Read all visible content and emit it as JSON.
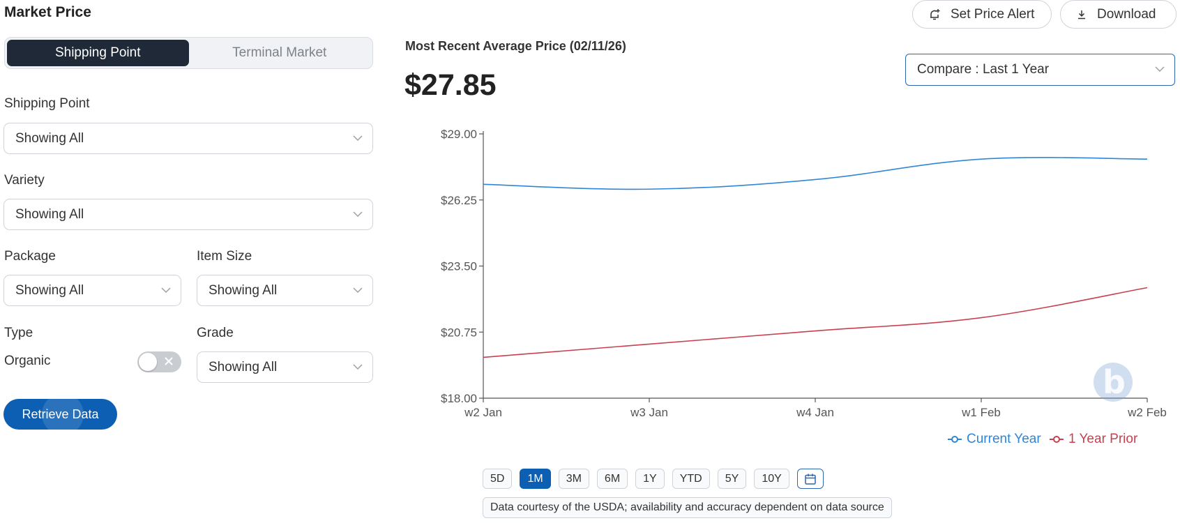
{
  "page": {
    "title": "Market Price"
  },
  "segments": [
    {
      "label": "Shipping Point",
      "active": true
    },
    {
      "label": "Terminal Market",
      "active": false
    }
  ],
  "filters": {
    "shipping_point": {
      "label": "Shipping Point",
      "value": "Showing All"
    },
    "variety": {
      "label": "Variety",
      "value": "Showing All"
    },
    "package": {
      "label": "Package",
      "value": "Showing All"
    },
    "item_size": {
      "label": "Item Size",
      "value": "Showing All"
    },
    "type": {
      "label": "Type",
      "option_label": "Organic",
      "toggle_on": false
    },
    "grade": {
      "label": "Grade",
      "value": "Showing All"
    }
  },
  "retrieve_button": "Retrieve Data",
  "header_buttons": {
    "alert": "Set Price Alert",
    "download": "Download"
  },
  "summary": {
    "label": "Most Recent Average Price (02/11/26)",
    "price": "$27.85"
  },
  "compare": {
    "value": "Compare : Last 1 Year"
  },
  "chart_data": {
    "type": "line",
    "categories": [
      "w2 Jan",
      "w3 Jan",
      "w4 Jan",
      "w1 Feb",
      "w2 Feb"
    ],
    "y_ticks": [
      "$18.00",
      "$20.75",
      "$23.50",
      "$26.25",
      "$29.00"
    ],
    "ylim": [
      18,
      29
    ],
    "series": [
      {
        "name": "Current Year",
        "color": "#2f86d6",
        "values": [
          26.9,
          26.7,
          27.1,
          27.95,
          27.95
        ]
      },
      {
        "name": "1 Year Prior",
        "color": "#c8404f",
        "values": [
          19.7,
          20.25,
          20.8,
          21.35,
          22.6
        ]
      }
    ],
    "legend_position": "bottom-right"
  },
  "ranges": [
    {
      "label": "5D",
      "active": false
    },
    {
      "label": "1M",
      "active": true
    },
    {
      "label": "3M",
      "active": false
    },
    {
      "label": "6M",
      "active": false
    },
    {
      "label": "1Y",
      "active": false
    },
    {
      "label": "YTD",
      "active": false
    },
    {
      "label": "5Y",
      "active": false
    },
    {
      "label": "10Y",
      "active": false
    }
  ],
  "note": "Data courtesy of the USDA; availability and accuracy dependent on data source",
  "icons": {
    "alert": "bell-plus-icon",
    "download": "download-icon",
    "calendar": "calendar-icon",
    "chevron": "chevron-down-icon",
    "watermark": "brand-watermark-icon"
  }
}
